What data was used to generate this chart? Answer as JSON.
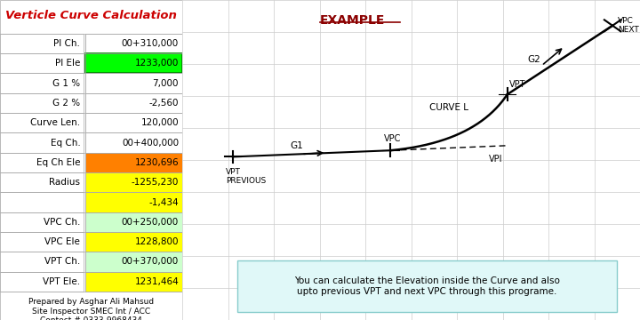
{
  "title": "Verticle Curve Calculation",
  "title_color": "#CC0000",
  "bg_color": "#FFFFFF",
  "table_rows": [
    [
      "PI Ch.",
      "00+310,000",
      "white",
      "white"
    ],
    [
      "PI Ele",
      "1233,000",
      "white",
      "#00FF00"
    ],
    [
      "G 1 %",
      "7,000",
      "white",
      "white"
    ],
    [
      "G 2 %",
      "-2,560",
      "white",
      "white"
    ],
    [
      "Curve Len.",
      "120,000",
      "white",
      "white"
    ],
    [
      "Eq Ch.",
      "00+400,000",
      "white",
      "white"
    ],
    [
      "Eq Ch Ele",
      "1230,696",
      "white",
      "#FF8000"
    ],
    [
      "Radius",
      "-1255,230",
      "white",
      "#FFFF00"
    ],
    [
      "",
      "-1,434",
      "white",
      "#FFFF00"
    ],
    [
      "VPC Ch.",
      "00+250,000",
      "white",
      "#CCFFCC"
    ],
    [
      "VPC Ele",
      "1228,800",
      "white",
      "#FFFF00"
    ],
    [
      "VPT Ch.",
      "00+370,000",
      "white",
      "#CCFFCC"
    ],
    [
      "VPT Ele.",
      "1231,464",
      "white",
      "#FFFF00"
    ]
  ],
  "footer_text": "Prepared by Asghar Ali Mahsud\nSite Inspector SMEC Int / ACC\nContect # 0333-9968434",
  "example_label": "EXAMPLE",
  "info_text": "You can calculate the Elevation inside the Curve and also\nupto previous VPT and next VPC through this programe.",
  "info_bg": "#E0F8F8"
}
